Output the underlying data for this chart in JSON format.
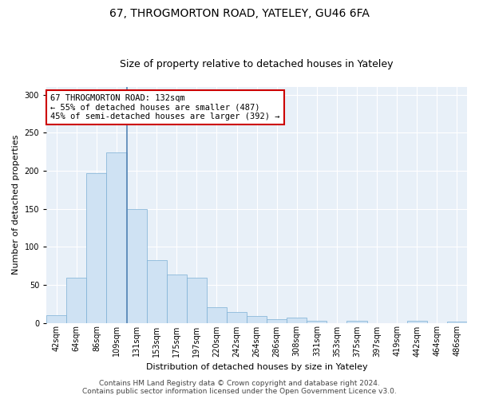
{
  "title_line1": "67, THROGMORTON ROAD, YATELEY, GU46 6FA",
  "title_line2": "Size of property relative to detached houses in Yateley",
  "xlabel": "Distribution of detached houses by size in Yateley",
  "ylabel": "Number of detached properties",
  "bar_labels": [
    "42sqm",
    "64sqm",
    "86sqm",
    "109sqm",
    "131sqm",
    "153sqm",
    "175sqm",
    "197sqm",
    "220sqm",
    "242sqm",
    "264sqm",
    "286sqm",
    "308sqm",
    "331sqm",
    "353sqm",
    "375sqm",
    "397sqm",
    "419sqm",
    "442sqm",
    "464sqm",
    "486sqm"
  ],
  "bar_values": [
    10,
    59,
    197,
    224,
    150,
    82,
    63,
    59,
    20,
    14,
    9,
    5,
    7,
    3,
    0,
    3,
    0,
    0,
    3,
    0,
    2
  ],
  "bar_width": 1.0,
  "bar_color": "#cfe2f3",
  "bar_edge_color": "#7bafd4",
  "highlight_bar_index": 4,
  "highlight_line_color": "#5585b5",
  "annotation_text": "67 THROGMORTON ROAD: 132sqm\n← 55% of detached houses are smaller (487)\n45% of semi-detached houses are larger (392) →",
  "annotation_box_color": "white",
  "annotation_box_edge_color": "#cc0000",
  "ylim": [
    0,
    310
  ],
  "yticks": [
    0,
    50,
    100,
    150,
    200,
    250,
    300
  ],
  "footer_line1": "Contains HM Land Registry data © Crown copyright and database right 2024.",
  "footer_line2": "Contains public sector information licensed under the Open Government Licence v3.0.",
  "bg_color": "white",
  "plot_bg_color": "#e8f0f8",
  "title_fontsize": 10,
  "subtitle_fontsize": 9,
  "axis_label_fontsize": 8,
  "tick_label_fontsize": 7,
  "annotation_fontsize": 7.5,
  "footer_fontsize": 6.5
}
